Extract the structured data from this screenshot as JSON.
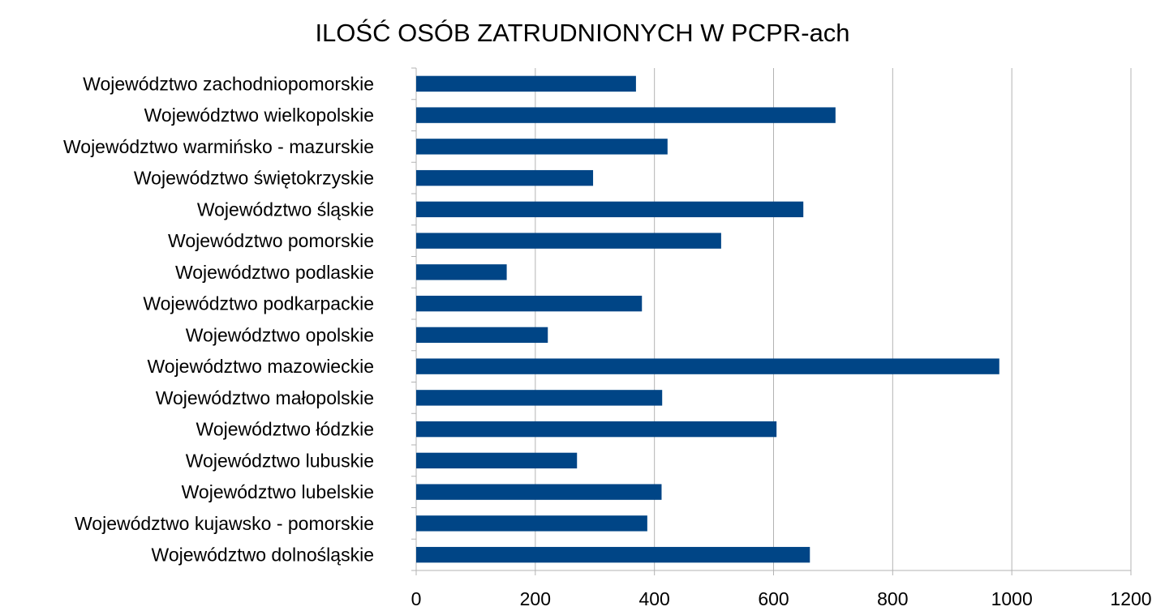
{
  "chart_data": {
    "type": "bar",
    "orientation": "horizontal",
    "title": "ILOŚĆ OSÓB ZATRUDNIONYCH W PCPR-ach",
    "xlabel": "",
    "ylabel": "",
    "categories": [
      "Województwo zachodniopomorskie",
      "Województwo wielkopolskie",
      "Województwo warmińsko - mazurskie",
      "Województwo świętokrzyskie",
      "Województwo śląskie",
      "Województwo pomorskie",
      "Województwo podlaskie",
      "Województwo podkarpackie",
      "Województwo opolskie",
      "Województwo mazowieckie",
      "Województwo małopolskie",
      "Województwo łódzkie",
      "Województwo lubuskie",
      "Województwo lubelskie",
      "Województwo kujawsko - pomorskie",
      "Województwo dolnośląskie"
    ],
    "values": [
      369,
      704,
      422,
      297,
      650,
      512,
      152,
      379,
      221,
      979,
      413,
      605,
      270,
      412,
      388,
      661
    ],
    "xlim": [
      0,
      1200
    ],
    "xticks": [
      "0",
      "200",
      "400",
      "600",
      "800",
      "1000",
      "1200"
    ],
    "grid": true,
    "legend": "none",
    "colors": {
      "bar": "#004586",
      "grid": "#b3b3b3",
      "axis": "#b3b3b3"
    }
  }
}
